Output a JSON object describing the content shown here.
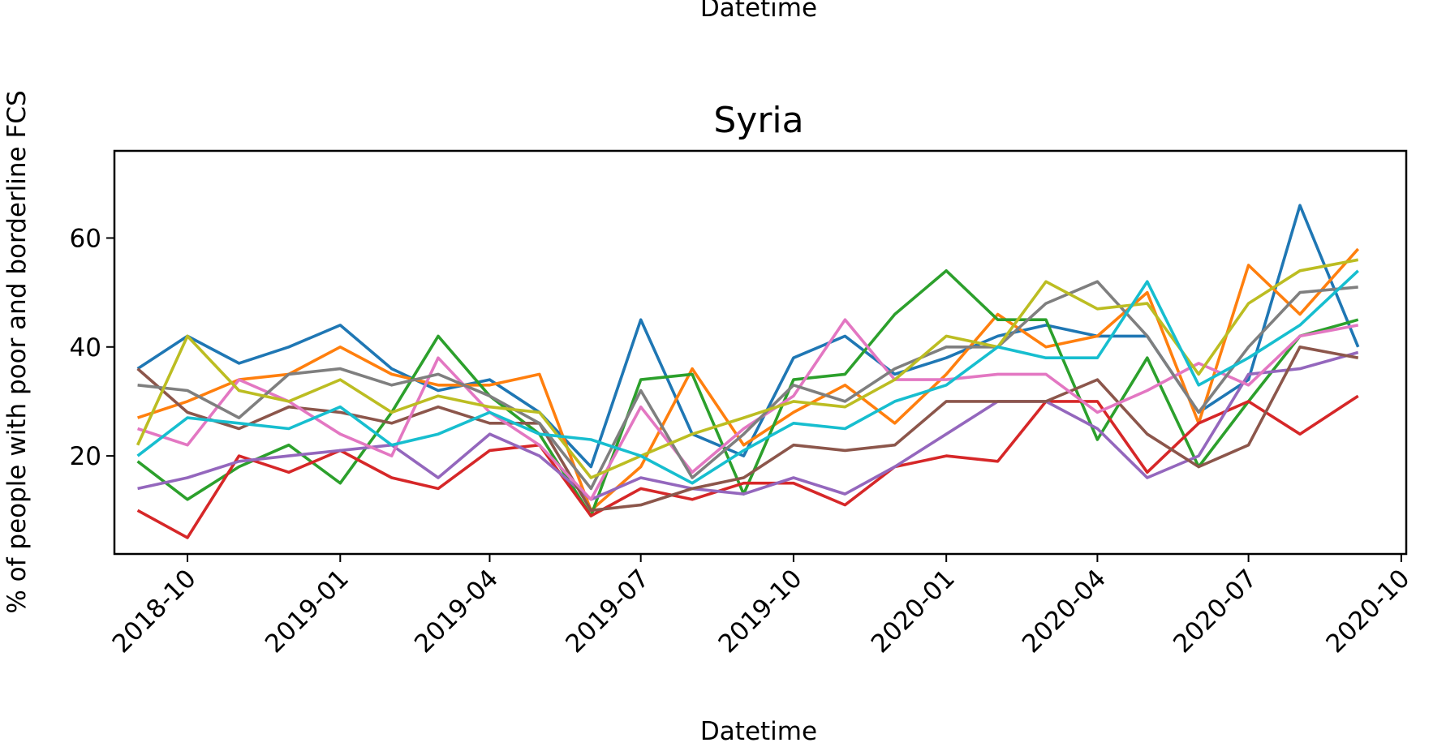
{
  "chart_data": {
    "type": "line",
    "title": "Syria",
    "xlabel": "Datetime",
    "ylabel": "% of people with poor and borderline FCS",
    "top_clipped_label": "Datetime",
    "x_axis": {
      "type": "date",
      "range": [
        "2018-08-18",
        "2020-10-04"
      ],
      "ticks": [
        "2018-10-01",
        "2019-01-01",
        "2019-04-01",
        "2019-07-01",
        "2019-10-01",
        "2020-01-01",
        "2020-04-01",
        "2020-07-01",
        "2020-10-01"
      ],
      "tick_labels": [
        "2018-10",
        "2019-01",
        "2019-04",
        "2019-07",
        "2019-10",
        "2020-01",
        "2020-04",
        "2020-07",
        "2020-10"
      ]
    },
    "y_axis": {
      "range": [
        2,
        76
      ],
      "ticks": [
        20,
        40,
        60
      ],
      "tick_labels": [
        "20",
        "40",
        "60"
      ]
    },
    "grid": false,
    "legend": "none",
    "x": [
      "2018-09-01",
      "2018-10-01",
      "2018-11-01",
      "2018-12-01",
      "2019-01-01",
      "2019-02-01",
      "2019-03-01",
      "2019-04-01",
      "2019-05-01",
      "2019-06-01",
      "2019-07-01",
      "2019-08-01",
      "2019-09-01",
      "2019-10-01",
      "2019-11-01",
      "2019-12-01",
      "2020-01-01",
      "2020-02-01",
      "2020-03-01",
      "2020-04-01",
      "2020-05-01",
      "2020-06-01",
      "2020-07-01",
      "2020-08-01",
      "2020-09-05"
    ],
    "series": [
      {
        "color": "#1f77b4",
        "values": [
          36,
          42,
          37,
          40,
          44,
          36,
          32,
          34,
          28,
          18,
          45,
          24,
          20,
          38,
          42,
          35,
          38,
          42,
          44,
          42,
          42,
          28,
          34,
          66,
          40
        ]
      },
      {
        "color": "#ff7f0e",
        "values": [
          27,
          30,
          34,
          35,
          40,
          35,
          33,
          33,
          35,
          10,
          18,
          36,
          22,
          28,
          33,
          26,
          35,
          46,
          40,
          42,
          50,
          26,
          55,
          46,
          58
        ]
      },
      {
        "color": "#2ca02c",
        "values": [
          19,
          12,
          18,
          22,
          15,
          28,
          42,
          31,
          24,
          9,
          34,
          35,
          13,
          34,
          35,
          46,
          54,
          45,
          45,
          23,
          38,
          18,
          30,
          42,
          45
        ]
      },
      {
        "color": "#d62728",
        "values": [
          10,
          5,
          20,
          17,
          21,
          16,
          14,
          21,
          22,
          9,
          14,
          12,
          15,
          15,
          11,
          18,
          20,
          19,
          30,
          30,
          17,
          26,
          30,
          24,
          31
        ]
      },
      {
        "color": "#9467bd",
        "values": [
          14,
          16,
          19,
          20,
          21,
          22,
          16,
          24,
          20,
          12,
          16,
          14,
          13,
          16,
          13,
          18,
          24,
          30,
          30,
          25,
          16,
          20,
          35,
          36,
          39
        ]
      },
      {
        "color": "#8c564b",
        "values": [
          36,
          28,
          25,
          29,
          28,
          26,
          29,
          26,
          26,
          10,
          11,
          14,
          16,
          22,
          21,
          22,
          30,
          30,
          30,
          34,
          24,
          18,
          22,
          40,
          38
        ]
      },
      {
        "color": "#e377c2",
        "values": [
          25,
          22,
          34,
          30,
          24,
          20,
          38,
          28,
          22,
          12,
          29,
          17,
          25,
          31,
          45,
          34,
          34,
          35,
          35,
          28,
          32,
          37,
          33,
          42,
          44
        ]
      },
      {
        "color": "#7f7f7f",
        "values": [
          33,
          32,
          27,
          35,
          36,
          33,
          35,
          31,
          26,
          14,
          32,
          16,
          24,
          33,
          30,
          36,
          40,
          40,
          48,
          52,
          42,
          28,
          40,
          50,
          51
        ]
      },
      {
        "color": "#bcbd22",
        "values": [
          22,
          42,
          32,
          30,
          34,
          28,
          31,
          29,
          28,
          16,
          20,
          24,
          27,
          30,
          29,
          34,
          42,
          40,
          52,
          47,
          48,
          35,
          48,
          54,
          56
        ]
      },
      {
        "color": "#17becf",
        "values": [
          20,
          27,
          26,
          25,
          29,
          22,
          24,
          28,
          24,
          23,
          20,
          15,
          21,
          26,
          25,
          30,
          33,
          40,
          38,
          38,
          52,
          33,
          38,
          44,
          54
        ]
      }
    ]
  }
}
